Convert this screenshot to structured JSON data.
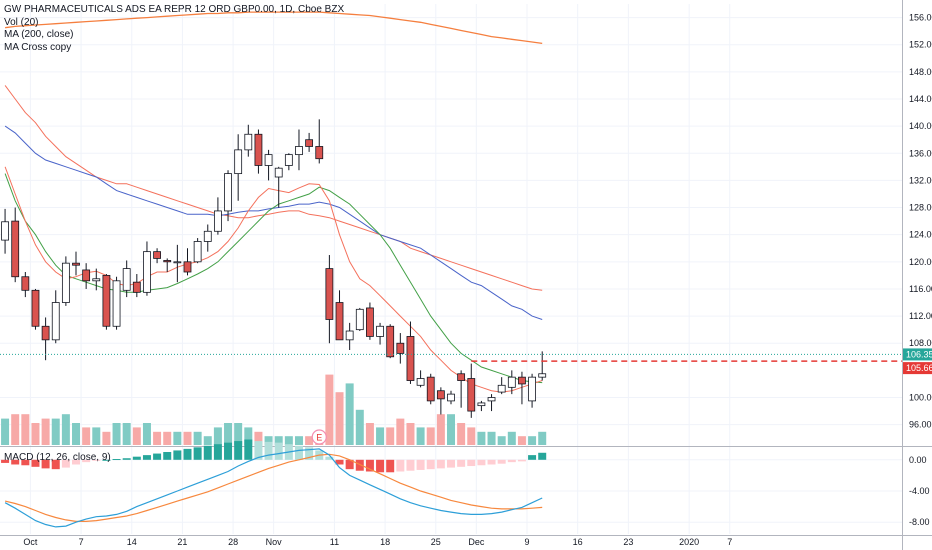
{
  "legend": {
    "title": "GW PHARMACEUTICALS ADS EA REPR 12 ORD GBP0.00, 1D, Cboe BZX",
    "vol": "Vol (20)",
    "ma": "MA (200, close)",
    "ma_cross": "MA Cross copy"
  },
  "macd_legend": "MACD (12, 26, close, 9)",
  "earnings_marker": "E",
  "colors": {
    "up": "#26a69a",
    "down": "#ef5350",
    "up_fill": "#ffffff",
    "down_fill": "#d9534f",
    "ma200": "#f57f3f",
    "ma_fast": "#f4715c",
    "ma_green": "#43a047",
    "ma_blue": "#4a64c9",
    "macd_line": "#2d9fd8",
    "signal_line": "#f7883e",
    "price_line": "#26a69a",
    "red_line": "#e53935"
  },
  "chart_data": {
    "type": "candlestick",
    "title": "GW PHARMACEUTICALS ADS EA REPR 12 ORD GBP0.00, 1D, Cboe BZX",
    "y_axis": {
      "range": [
        93,
        158
      ],
      "ticks": [
        "156.00",
        "152.00",
        "148.00",
        "144.00",
        "140.00",
        "136.00",
        "132.00",
        "128.00",
        "124.00",
        "120.00",
        "116.00",
        "112.00",
        "108.00",
        "100.00",
        "96.00"
      ]
    },
    "x_axis": {
      "range": [
        0,
        89
      ],
      "ticks": [
        {
          "label": "Oct",
          "x": 3
        },
        {
          "label": "7",
          "x": 8
        },
        {
          "label": "14",
          "x": 13
        },
        {
          "label": "21",
          "x": 18
        },
        {
          "label": "28",
          "x": 23
        },
        {
          "label": "Nov",
          "x": 27
        },
        {
          "label": "11",
          "x": 33
        },
        {
          "label": "18",
          "x": 38
        },
        {
          "label": "25",
          "x": 43
        },
        {
          "label": "Dec",
          "x": 47
        },
        {
          "label": "9",
          "x": 52
        },
        {
          "label": "16",
          "x": 57
        },
        {
          "label": "23",
          "x": 62
        },
        {
          "label": "2020",
          "x": 68
        },
        {
          "label": "7",
          "x": 72
        }
      ]
    },
    "price_labels": [
      {
        "value": "106.35",
        "price": 106.35,
        "color": "#26a69a"
      },
      {
        "value": "105.66",
        "price": 105.66,
        "color": "#e53935"
      }
    ],
    "candles": [
      {
        "o": 123.2,
        "h": 127.8,
        "l": 121.2,
        "c": 125.9
      },
      {
        "o": 126.0,
        "h": 128.0,
        "l": 117.0,
        "c": 117.8
      },
      {
        "o": 117.8,
        "h": 118.5,
        "l": 114.8,
        "c": 115.8
      },
      {
        "o": 115.8,
        "h": 116.0,
        "l": 110.0,
        "c": 110.5
      },
      {
        "o": 110.5,
        "h": 111.8,
        "l": 105.5,
        "c": 108.5
      },
      {
        "o": 108.5,
        "h": 115.8,
        "l": 108.0,
        "c": 114.0
      },
      {
        "o": 114.0,
        "h": 120.8,
        "l": 113.5,
        "c": 119.8
      },
      {
        "o": 119.8,
        "h": 121.5,
        "l": 118.0,
        "c": 119.5
      },
      {
        "o": 118.8,
        "h": 119.8,
        "l": 116.0,
        "c": 117.2
      },
      {
        "o": 117.2,
        "h": 119.0,
        "l": 115.8,
        "c": 117.5
      },
      {
        "o": 118.0,
        "h": 118.2,
        "l": 110.0,
        "c": 110.5
      },
      {
        "o": 110.5,
        "h": 117.8,
        "l": 110.0,
        "c": 117.2
      },
      {
        "o": 115.8,
        "h": 120.2,
        "l": 114.8,
        "c": 119.0
      },
      {
        "o": 117.0,
        "h": 118.2,
        "l": 114.8,
        "c": 115.5
      },
      {
        "o": 115.5,
        "h": 123.0,
        "l": 115.0,
        "c": 121.5
      },
      {
        "o": 121.5,
        "h": 122.0,
        "l": 119.8,
        "c": 120.5
      },
      {
        "o": 120.2,
        "h": 120.5,
        "l": 118.5,
        "c": 120.0
      },
      {
        "o": 120.0,
        "h": 122.5,
        "l": 117.0,
        "c": 120.0
      },
      {
        "o": 120.0,
        "h": 122.0,
        "l": 118.0,
        "c": 118.5
      },
      {
        "o": 120.0,
        "h": 123.5,
        "l": 119.8,
        "c": 123.0
      },
      {
        "o": 123.0,
        "h": 125.5,
        "l": 121.5,
        "c": 124.5
      },
      {
        "o": 124.5,
        "h": 129.5,
        "l": 124.0,
        "c": 127.5
      },
      {
        "o": 127.5,
        "h": 133.5,
        "l": 126.0,
        "c": 133.0
      },
      {
        "o": 133.0,
        "h": 138.8,
        "l": 129.0,
        "c": 136.5
      },
      {
        "o": 136.5,
        "h": 140.2,
        "l": 135.5,
        "c": 138.8
      },
      {
        "o": 138.8,
        "h": 139.5,
        "l": 133.0,
        "c": 134.2
      },
      {
        "o": 134.2,
        "h": 136.5,
        "l": 132.0,
        "c": 135.8
      },
      {
        "o": 132.5,
        "h": 134.0,
        "l": 128.0,
        "c": 133.8
      },
      {
        "o": 134.2,
        "h": 136.0,
        "l": 133.5,
        "c": 135.8
      },
      {
        "o": 135.8,
        "h": 139.5,
        "l": 133.5,
        "c": 137.0
      },
      {
        "o": 138.0,
        "h": 139.0,
        "l": 136.2,
        "c": 137.0
      },
      {
        "o": 137.0,
        "h": 141.0,
        "l": 134.5,
        "c": 135.2
      },
      {
        "o": 119.0,
        "h": 121.0,
        "l": 108.0,
        "c": 111.5
      },
      {
        "o": 114.0,
        "h": 115.8,
        "l": 108.5,
        "c": 108.5
      },
      {
        "o": 108.5,
        "h": 111.0,
        "l": 107.0,
        "c": 109.8
      },
      {
        "o": 110.0,
        "h": 113.2,
        "l": 109.8,
        "c": 113.0
      },
      {
        "o": 113.2,
        "h": 114.0,
        "l": 108.5,
        "c": 109.0
      },
      {
        "o": 109.0,
        "h": 111.0,
        "l": 107.8,
        "c": 110.5
      },
      {
        "o": 110.5,
        "h": 110.8,
        "l": 105.8,
        "c": 106.0
      },
      {
        "o": 108.0,
        "h": 109.5,
        "l": 105.0,
        "c": 106.5
      },
      {
        "o": 109.0,
        "h": 111.2,
        "l": 102.0,
        "c": 102.5
      },
      {
        "o": 101.8,
        "h": 104.0,
        "l": 101.5,
        "c": 102.8
      },
      {
        "o": 103.0,
        "h": 103.5,
        "l": 99.0,
        "c": 99.5
      },
      {
        "o": 101.0,
        "h": 101.5,
        "l": 97.5,
        "c": 99.8
      },
      {
        "o": 99.5,
        "h": 101.0,
        "l": 99.0,
        "c": 100.5
      },
      {
        "o": 103.5,
        "h": 104.0,
        "l": 98.5,
        "c": 102.5
      },
      {
        "o": 102.8,
        "h": 105.0,
        "l": 97.0,
        "c": 98.0
      },
      {
        "o": 98.8,
        "h": 99.5,
        "l": 98.0,
        "c": 99.2
      },
      {
        "o": 99.5,
        "h": 100.5,
        "l": 98.0,
        "c": 100.0
      },
      {
        "o": 100.8,
        "h": 103.0,
        "l": 100.5,
        "c": 101.8
      },
      {
        "o": 101.5,
        "h": 104.0,
        "l": 100.5,
        "c": 103.0
      },
      {
        "o": 103.0,
        "h": 103.8,
        "l": 99.0,
        "c": 102.0
      },
      {
        "o": 99.5,
        "h": 103.5,
        "l": 98.5,
        "c": 103.0
      },
      {
        "o": 103.0,
        "h": 106.8,
        "l": 102.5,
        "c": 103.5
      }
    ],
    "volume": {
      "max": 20,
      "values": [
        6,
        7,
        7,
        5,
        6,
        6,
        7,
        5,
        4,
        4,
        3,
        5,
        5,
        4,
        5,
        3,
        3,
        3,
        3,
        3,
        2,
        4,
        5,
        5,
        4,
        3,
        2,
        2,
        2,
        2,
        2,
        3,
        16,
        12,
        14,
        8,
        5,
        4,
        4,
        6,
        5,
        4,
        4,
        7,
        7,
        5,
        4,
        3,
        3,
        2,
        3,
        2,
        2,
        3
      ],
      "up": [
        true,
        false,
        false,
        false,
        false,
        true,
        true,
        true,
        false,
        true,
        false,
        true,
        true,
        false,
        true,
        false,
        false,
        true,
        false,
        true,
        true,
        true,
        true,
        true,
        true,
        false,
        true,
        true,
        true,
        true,
        false,
        false,
        false,
        false,
        true,
        true,
        false,
        true,
        false,
        false,
        false,
        true,
        false,
        false,
        true,
        false,
        false,
        true,
        true,
        true,
        true,
        false,
        true,
        true
      ]
    },
    "ma200": [
      154.5,
      154.7,
      154.8,
      154.9,
      155.0,
      155.1,
      155.2,
      155.3,
      155.4,
      155.5,
      155.6,
      155.7,
      155.8,
      155.9,
      156.0,
      156.1,
      156.2,
      156.3,
      156.4,
      156.5,
      156.6,
      156.6,
      156.7,
      156.7,
      156.8,
      156.8,
      156.8,
      156.8,
      156.8,
      156.8,
      156.8,
      156.8,
      156.7,
      156.6,
      156.5,
      156.4,
      156.3,
      156.1,
      155.9,
      155.7,
      155.5,
      155.3,
      155.0,
      154.7,
      154.4,
      154.1,
      153.8,
      153.5,
      153.2,
      153.0,
      152.8,
      152.6,
      152.4,
      152.2
    ],
    "ma_fast": [
      134,
      130,
      126,
      122.5,
      120,
      118.5,
      117.5,
      117.8,
      118.4,
      118.6,
      118.0,
      116.8,
      116.5,
      116.8,
      117.8,
      118.5,
      118.5,
      119.2,
      119.7,
      120.0,
      120.6,
      121.5,
      123.0,
      125.0,
      127.5,
      129.5,
      130.8,
      130.5,
      130.2,
      130.9,
      131.5,
      131.4,
      129.0,
      124.0,
      120.0,
      117.5,
      116.5,
      115.0,
      113.5,
      112.0,
      110.5,
      109.0,
      107.0,
      105.5,
      104.0,
      103.0,
      102.0,
      101.5,
      101.0,
      100.8,
      101.0,
      101.5,
      102.0,
      102.5
    ],
    "ma_green": [
      133,
      129,
      126,
      124.0,
      121.5,
      119.5,
      118.0,
      117.5,
      117.0,
      116.5,
      116.0,
      115.8,
      115.5,
      115.5,
      115.8,
      116.0,
      116.2,
      116.8,
      117.5,
      118.2,
      119.0,
      120.0,
      121.5,
      123.0,
      124.5,
      126.0,
      127.5,
      128.5,
      129.0,
      129.5,
      130.0,
      131.0,
      130.5,
      129.5,
      128.5,
      127.0,
      125.5,
      124.0,
      122.0,
      119.5,
      117.0,
      114.5,
      112.0,
      110.0,
      108.0,
      106.5,
      105.5,
      104.5,
      104.0,
      103.5,
      103.0,
      102.5,
      102.3,
      102.2
    ],
    "ma_blue": [
      140,
      139,
      137.5,
      136.0,
      135.0,
      134.5,
      134.0,
      133.5,
      133.0,
      132.5,
      131.5,
      130.5,
      130.0,
      129.5,
      129.0,
      128.5,
      128.0,
      127.5,
      127.0,
      127.0,
      127.0,
      126.8,
      127.0,
      127.3,
      127.5,
      127.5,
      127.8,
      128.0,
      128.2,
      128.5,
      128.5,
      128.8,
      128.5,
      128.0,
      127.0,
      126.0,
      125.0,
      124.0,
      123.5,
      123.0,
      122.5,
      122.0,
      121.0,
      120.0,
      119.0,
      118.0,
      117.0,
      116.5,
      115.5,
      114.5,
      113.5,
      113.0,
      112.0,
      111.5
    ],
    "ma_red": [
      146,
      144,
      142,
      140.5,
      138.5,
      137,
      135.5,
      134.5,
      133.5,
      132.5,
      132.0,
      131.5,
      131.5,
      131.0,
      130.5,
      130.0,
      129.5,
      129.0,
      128.5,
      128.0,
      127.5,
      127.0,
      126.8,
      126.5,
      126.5,
      126.8,
      127.0,
      127.3,
      127.5,
      127.5,
      127.0,
      126.8,
      126.5,
      126.0,
      125.5,
      125.0,
      124.5,
      124.0,
      123.5,
      123.0,
      122.0,
      121.5,
      121.0,
      120.5,
      120.0,
      119.5,
      119.0,
      118.5,
      118.0,
      117.5,
      117.0,
      116.5,
      116.0,
      115.8
    ],
    "macd": {
      "range": [
        -9,
        1
      ],
      "ticks": [
        "0.00",
        "-4.00",
        "-8.00"
      ],
      "histogram": [
        -0.4,
        -0.6,
        -0.7,
        -0.9,
        -1.1,
        -1.2,
        -1.0,
        -0.6,
        -0.3,
        -0.1,
        0,
        0.1,
        0.2,
        0.4,
        0.6,
        0.8,
        1.0,
        1.2,
        1.4,
        1.6,
        1.8,
        2.0,
        2.2,
        2.4,
        2.6,
        2.4,
        2.3,
        2.2,
        2.0,
        1.8,
        1.6,
        1.2,
        0.4,
        -0.6,
        -1.2,
        -1.4,
        -1.5,
        -1.6,
        -1.6,
        -1.5,
        -1.4,
        -1.3,
        -1.2,
        -1.1,
        -1.0,
        -0.9,
        -0.8,
        -0.7,
        -0.6,
        -0.5,
        -0.3,
        -0.2,
        0.6,
        0.9
      ],
      "macd_line": [
        -5.5,
        -6.2,
        -7.0,
        -7.8,
        -8.3,
        -8.6,
        -8.5,
        -8.0,
        -7.6,
        -7.3,
        -7.2,
        -7.0,
        -6.6,
        -6.0,
        -5.5,
        -5.0,
        -4.5,
        -4.0,
        -3.5,
        -3.0,
        -2.5,
        -2.0,
        -1.5,
        -0.8,
        -0.2,
        0.3,
        0.6,
        0.8,
        1.0,
        1.2,
        1.3,
        1.4,
        0.6,
        -1.0,
        -2.0,
        -2.6,
        -3.2,
        -3.8,
        -4.4,
        -5.0,
        -5.5,
        -5.9,
        -6.2,
        -6.5,
        -6.7,
        -6.9,
        -7.0,
        -7.0,
        -6.9,
        -6.7,
        -6.4,
        -6.1,
        -5.5,
        -4.9
      ],
      "signal_line": [
        -5.3,
        -5.6,
        -6.0,
        -6.5,
        -7.0,
        -7.4,
        -7.7,
        -7.9,
        -7.9,
        -7.8,
        -7.6,
        -7.4,
        -7.2,
        -6.9,
        -6.5,
        -6.1,
        -5.7,
        -5.3,
        -4.9,
        -4.5,
        -4.1,
        -3.6,
        -3.1,
        -2.6,
        -2.1,
        -1.6,
        -1.1,
        -0.7,
        -0.3,
        0.0,
        0.3,
        0.6,
        0.7,
        0.5,
        0.0,
        -0.6,
        -1.2,
        -1.8,
        -2.4,
        -3.0,
        -3.5,
        -4.0,
        -4.4,
        -4.8,
        -5.2,
        -5.5,
        -5.8,
        -6.0,
        -6.2,
        -6.3,
        -6.3,
        -6.3,
        -6.2,
        -6.1
      ]
    }
  }
}
